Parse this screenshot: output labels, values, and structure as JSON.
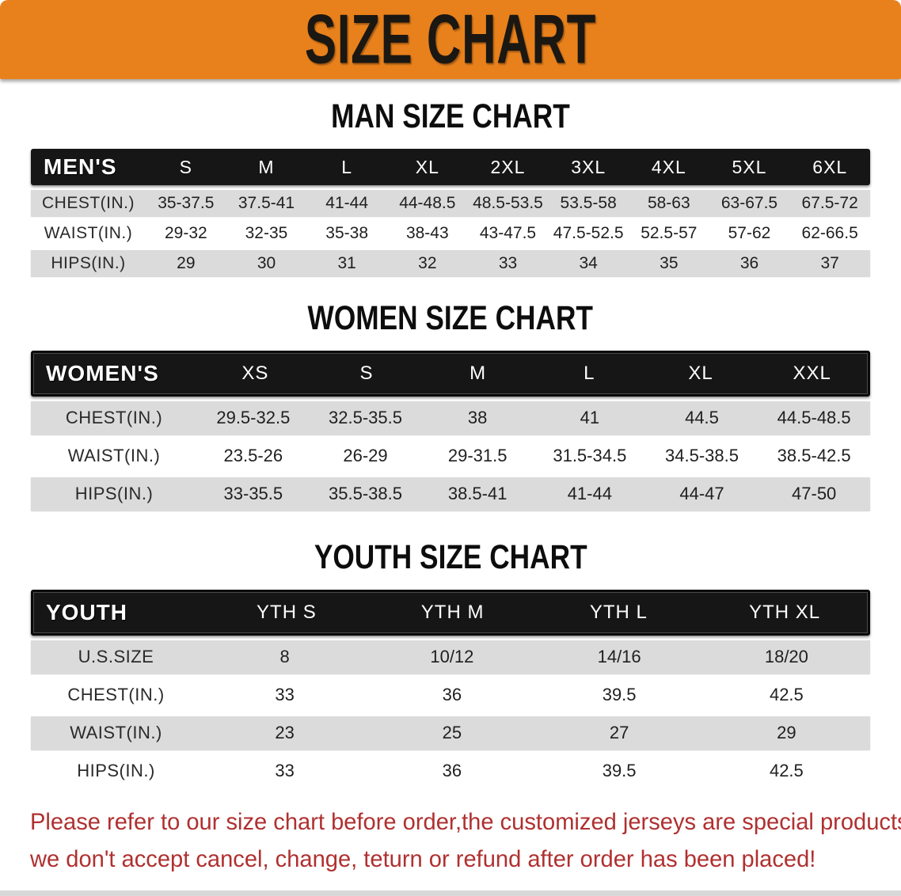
{
  "banner": {
    "title": "SIZE CHART",
    "bg_color": "#E8811C",
    "text_color": "#1b1712"
  },
  "tables": [
    {
      "title": "MAN SIZE CHART",
      "header_label": "MEN'S",
      "columns": [
        "S",
        "M",
        "L",
        "XL",
        "2XL",
        "3XL",
        "4XL",
        "5XL",
        "6XL"
      ],
      "rows": [
        {
          "label": "CHEST(IN.)",
          "values": [
            "35-37.5",
            "37.5-41",
            "41-44",
            "44-48.5",
            "48.5-53.5",
            "53.5-58",
            "58-63",
            "63-67.5",
            "67.5-72"
          ]
        },
        {
          "label": "WAIST(IN.)",
          "values": [
            "29-32",
            "32-35",
            "35-38",
            "38-43",
            "43-47.5",
            "47.5-52.5",
            "52.5-57",
            "57-62",
            "62-66.5"
          ]
        },
        {
          "label": "HIPS(IN.)",
          "values": [
            "29",
            "30",
            "31",
            "32",
            "33",
            "34",
            "35",
            "36",
            "37"
          ]
        }
      ]
    },
    {
      "title": "WOMEN SIZE CHART",
      "header_label": "WOMEN'S",
      "columns": [
        "XS",
        "S",
        "M",
        "L",
        "XL",
        "XXL"
      ],
      "rows": [
        {
          "label": "CHEST(IN.)",
          "values": [
            "29.5-32.5",
            "32.5-35.5",
            "38",
            "41",
            "44.5",
            "44.5-48.5"
          ]
        },
        {
          "label": "WAIST(IN.)",
          "values": [
            "23.5-26",
            "26-29",
            "29-31.5",
            "31.5-34.5",
            "34.5-38.5",
            "38.5-42.5"
          ]
        },
        {
          "label": "HIPS(IN.)",
          "values": [
            "33-35.5",
            "35.5-38.5",
            "38.5-41",
            "41-44",
            "44-47",
            "47-50"
          ]
        }
      ]
    },
    {
      "title": "YOUTH SIZE CHART",
      "header_label": "YOUTH",
      "columns": [
        "YTH S",
        "YTH M",
        "YTH L",
        "YTH XL"
      ],
      "rows": [
        {
          "label": "U.S.SIZE",
          "values": [
            "8",
            "10/12",
            "14/16",
            "18/20"
          ]
        },
        {
          "label": "CHEST(IN.)",
          "values": [
            "33",
            "36",
            "39.5",
            "42.5"
          ]
        },
        {
          "label": "WAIST(IN.)",
          "values": [
            "23",
            "25",
            "27",
            "29"
          ]
        },
        {
          "label": "HIPS(IN.)",
          "values": [
            "33",
            "36",
            "39.5",
            "42.5"
          ]
        }
      ]
    }
  ],
  "disclaimer": {
    "line1": "Please refer to our size chart before order,the customized jerseys are special products,",
    "line2": "we don't accept cancel, change, teturn or refund after order has been placed!",
    "color": "#B03030"
  },
  "style_colors": {
    "header_bar": "#161616",
    "row_gray": "#DBDBDB",
    "row_white": "#FFFFFF"
  }
}
